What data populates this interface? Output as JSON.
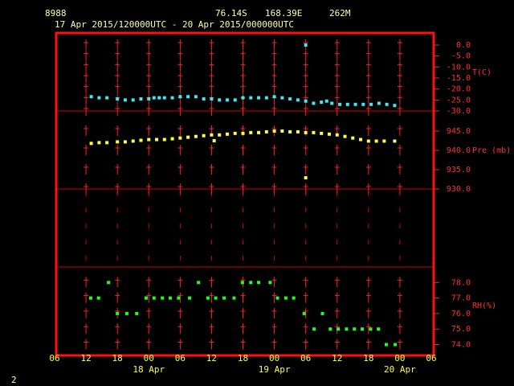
{
  "header": {
    "station": "8988",
    "lat": "76.14S",
    "lon": "168.39E",
    "elev": "262M",
    "period": "17 Apr 2015/120000UTC - 20 Apr 2015/000000UTC"
  },
  "footer": {
    "page": "2"
  },
  "chart_data": [
    {
      "type": "scatter",
      "ylabel": "T(C)",
      "color": "#40e8f0",
      "ylim": [
        -30,
        5.5
      ],
      "yticks": [
        {
          "value": 0,
          "label": "0.0"
        },
        {
          "value": -5,
          "label": "-5.0"
        },
        {
          "value": -10,
          "label": "-10.0"
        },
        {
          "value": -15,
          "label": "-15.0"
        },
        {
          "value": -20,
          "label": "-20.0"
        },
        {
          "value": -25,
          "label": "-25.0"
        },
        {
          "value": -30,
          "label": "-30.0"
        }
      ],
      "x": [
        13,
        14.5,
        16,
        18,
        19.5,
        21,
        22.5,
        24,
        25,
        26,
        27,
        28.5,
        30,
        31.5,
        33,
        34.5,
        36,
        37.5,
        39,
        40.5,
        42,
        43.5,
        45,
        46.5,
        48,
        49.5,
        51,
        52.5,
        54,
        54,
        55.5,
        57,
        58,
        59,
        60.5,
        62,
        63.5,
        65,
        66.5,
        68,
        69.5,
        71
      ],
      "values": [
        -23.5,
        -24,
        -24,
        -24.5,
        -25,
        -25,
        -24.5,
        -24.5,
        -24,
        -24,
        -24,
        -24,
        -23.5,
        -23.5,
        -23.5,
        -24.5,
        -24.5,
        -25,
        -25,
        -25,
        -24,
        -24,
        -24,
        -24,
        -23.5,
        -24,
        -24.5,
        -25,
        0,
        -25.5,
        -26.5,
        -26,
        -25.5,
        -26.5,
        -27,
        -27,
        -27,
        -27,
        -27,
        -26.5,
        -27,
        -27.5
      ]
    },
    {
      "type": "scatter",
      "ylabel": "Pre (mb)",
      "color": "#ffff40",
      "ylim": [
        930,
        950.2
      ],
      "yticks": [
        {
          "value": 945,
          "label": "945.0"
        },
        {
          "value": 940,
          "label": "940.0"
        },
        {
          "value": 935,
          "label": "935.0"
        },
        {
          "value": 930,
          "label": "930.0"
        }
      ],
      "x": [
        13,
        14.5,
        16,
        18,
        19.5,
        21,
        22.5,
        24,
        25.5,
        27,
        28.5,
        30,
        31.5,
        33,
        34.5,
        36,
        36.5,
        37.5,
        39,
        40.5,
        42,
        43.5,
        45,
        46.5,
        48,
        49.5,
        51,
        52.5,
        54,
        54,
        55.5,
        57,
        58.5,
        60,
        61.5,
        63,
        64.5,
        66,
        67.5,
        69,
        71
      ],
      "values": [
        941.8,
        942,
        942,
        942.2,
        942.2,
        942.4,
        942.6,
        942.8,
        942.8,
        942.8,
        943,
        943.2,
        943.4,
        943.6,
        943.8,
        944,
        942.5,
        944,
        944.2,
        944.4,
        944.4,
        944.6,
        944.6,
        944.8,
        945,
        945,
        944.8,
        944.8,
        944.6,
        932.9,
        944.6,
        944.4,
        944.2,
        944,
        943.6,
        943.2,
        942.8,
        942.4,
        942.4,
        942.4,
        942.4
      ]
    },
    {
      "type": "scatter",
      "ylabel": "RH(%)",
      "color": "#20ff20",
      "ylim": [
        73.3,
        79.0
      ],
      "yticks": [
        {
          "value": 78,
          "label": "78.0"
        },
        {
          "value": 77,
          "label": "77.0"
        },
        {
          "value": 76,
          "label": "76.0"
        },
        {
          "value": 75,
          "label": "75.0"
        },
        {
          "value": 74,
          "label": "74.0"
        }
      ],
      "xlim": [
        6,
        78
      ],
      "xticks": [
        {
          "value": 6,
          "label": "06"
        },
        {
          "value": 12,
          "label": "12"
        },
        {
          "value": 18,
          "label": "18"
        },
        {
          "value": 24,
          "label": "00"
        },
        {
          "value": 30,
          "label": "06"
        },
        {
          "value": 36,
          "label": "12"
        },
        {
          "value": 42,
          "label": "18"
        },
        {
          "value": 48,
          "label": "00"
        },
        {
          "value": 54,
          "label": "06"
        },
        {
          "value": 60,
          "label": "12"
        },
        {
          "value": 66,
          "label": "18"
        },
        {
          "value": 72,
          "label": "00"
        },
        {
          "value": 78,
          "label": "06"
        }
      ],
      "date_ticks": [
        {
          "value": 24,
          "label": "18 Apr"
        },
        {
          "value": 48,
          "label": "19 Apr"
        },
        {
          "value": 72,
          "label": "20 Apr"
        }
      ],
      "x": [
        12.9,
        14.4,
        16.3,
        18,
        19.8,
        21.7,
        23.5,
        25,
        26.6,
        28.1,
        29.7,
        31.8,
        33.5,
        35.3,
        36.8,
        38.4,
        40.3,
        41.9,
        43.5,
        45,
        47.2,
        48.6,
        50.2,
        51.7,
        53.7,
        55.6,
        57.2,
        58.7,
        60.2,
        61.8,
        63.3,
        64.8,
        66.4,
        67.9,
        69.4,
        71.1
      ],
      "values": [
        77,
        77,
        78,
        76,
        76,
        76,
        77,
        77,
        77,
        77,
        77,
        77,
        78,
        77,
        77,
        77,
        77,
        78,
        78,
        78,
        78,
        77,
        77,
        77,
        76,
        75,
        76,
        75,
        75,
        75,
        75,
        75,
        75,
        75,
        74,
        74
      ]
    }
  ]
}
